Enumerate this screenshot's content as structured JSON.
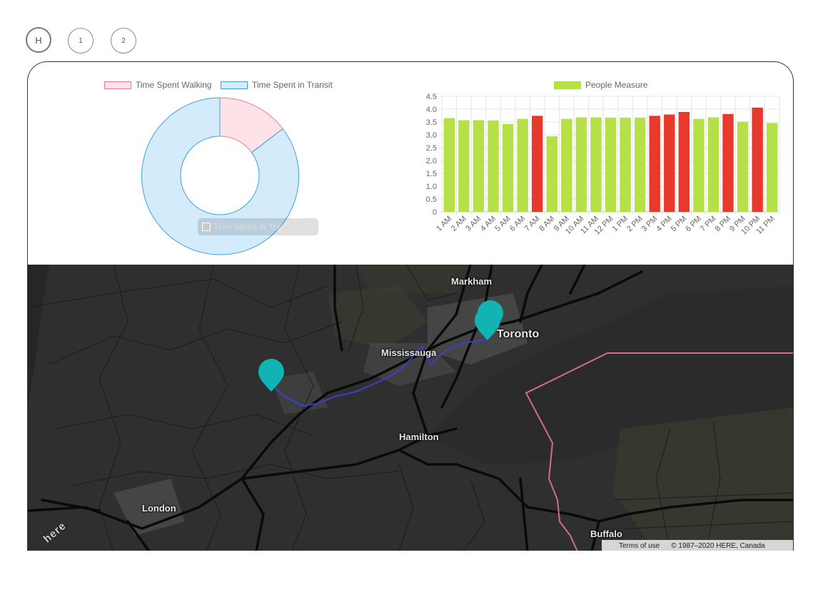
{
  "nav": {
    "home_label": "H",
    "page1_label": "1",
    "page2_label": "2"
  },
  "donut": {
    "legend": [
      {
        "label": "Time Spent Walking",
        "fill": "#fde3e8",
        "stroke": "#f07b93"
      },
      {
        "label": "Time Spent in Transit",
        "fill": "#d3ebfb",
        "stroke": "#3fa1dc"
      }
    ],
    "tooltip": "Time Spent in Transit: 1.1"
  },
  "chart_data": {
    "type": "bar",
    "legend": "People Measure",
    "categories": [
      "1 AM",
      "2 AM",
      "3 AM",
      "4 AM",
      "5 AM",
      "6 AM",
      "7 AM",
      "8 AM",
      "9 AM",
      "10 AM",
      "11 AM",
      "12 PM",
      "1 PM",
      "2 PM",
      "3 PM",
      "4 PM",
      "5 PM",
      "6 PM",
      "7 PM",
      "8 PM",
      "9 PM",
      "10 PM",
      "11 PM"
    ],
    "values": [
      3.65,
      3.57,
      3.57,
      3.56,
      3.42,
      3.62,
      3.74,
      2.94,
      3.62,
      3.68,
      3.68,
      3.67,
      3.67,
      3.67,
      3.74,
      3.79,
      3.89,
      3.62,
      3.68,
      3.81,
      3.51,
      4.06,
      3.46
    ],
    "colors": [
      "green",
      "green",
      "green",
      "green",
      "green",
      "green",
      "red",
      "green",
      "green",
      "green",
      "green",
      "green",
      "green",
      "green",
      "red",
      "red",
      "red",
      "green",
      "green",
      "red",
      "green",
      "red",
      "green"
    ],
    "yticks": [
      "4.5",
      "4.0",
      "3.5",
      "3.0",
      "2.5",
      "2.0",
      "1.5",
      "1.0",
      "0.5",
      "0"
    ],
    "ylim": [
      0,
      4.5
    ],
    "palette": {
      "green": "#b5e047",
      "red": "#e83a2c"
    }
  },
  "map": {
    "cities": {
      "markham": "Markham",
      "toronto": "Toronto",
      "mississauga": "Mississauga",
      "hamilton": "Hamilton",
      "london": "London",
      "buffalo": "Buffalo"
    },
    "attribution": {
      "terms": "Terms of use",
      "copyright": "© 1987–2020 HERE, Canada"
    },
    "logo": "here",
    "marker_color": "#12b3b3",
    "route_color": "#3a3fcf"
  }
}
